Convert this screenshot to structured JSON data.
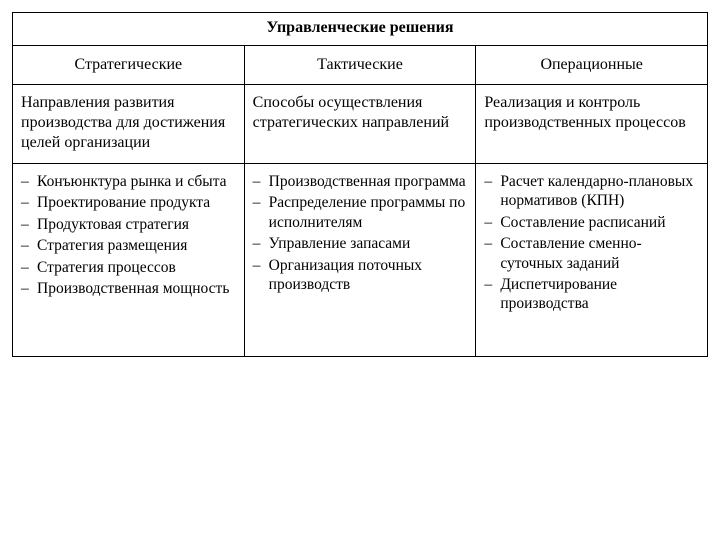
{
  "title": "Управленческие решения",
  "columns": [
    {
      "header": "Стратегические",
      "description": "Направления развития производства для достижения целей организации",
      "items": [
        "Конъюнктура рынка и сбыта",
        "Проектирование продукта",
        "Продуктовая стратегия",
        "Стратегия размещения",
        "Стратегия процессов",
        "Производственная мощность"
      ]
    },
    {
      "header": "Тактические",
      "description": "Способы осуществления стратегических направлений",
      "items": [
        "Производственная программа",
        "Распределение программы по исполнителям",
        "Управление запасами",
        "Организация поточных производств"
      ]
    },
    {
      "header": "Операционные",
      "description": "Реализация и контроль производственных процессов",
      "items": [
        "Расчет календарно-плановых нормативов (КПН)",
        "Составление расписаний",
        "Составление сменно-суточных заданий",
        "Диспетчирование производства"
      ]
    }
  ],
  "style": {
    "border_color": "#000000",
    "background_color": "#ffffff",
    "text_color": "#000000",
    "font_family": "Times New Roman",
    "title_fontsize": 16,
    "header_fontsize": 16,
    "body_fontsize": 15.5,
    "column_count": 3
  }
}
